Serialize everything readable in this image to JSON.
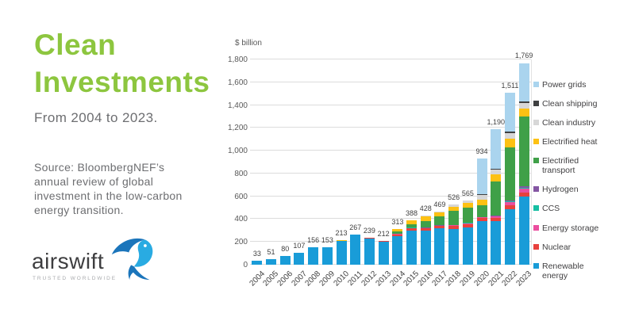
{
  "slide": {
    "title": "Clean Investments",
    "subtitle": "From 2004 to 2023.",
    "source": "Source: BloombergNEF’s annual review of global investment in the low-carbon energy transition.",
    "logo": {
      "name": "airswift",
      "tagline": "TRUSTED WORLDWIDE"
    },
    "colors": {
      "title_green": "#8dc63f",
      "text_gray": "#6d6e71",
      "logo_dark": "#3e3e40",
      "bird_dark_blue": "#1b75bb",
      "bird_light_blue": "#29abe2"
    }
  },
  "chart_data": {
    "type": "bar",
    "stacked": true,
    "title": "",
    "xlabel": "",
    "ylabel": "$ billion",
    "ylim": [
      0,
      1800
    ],
    "y_tick_step": 200,
    "y_ticks": [
      "0",
      "200",
      "400",
      "600",
      "800",
      "1,000",
      "1,200",
      "1,400",
      "1,600",
      "1,800"
    ],
    "grid": "horizontal",
    "legend_position": "right",
    "categories": [
      "2004",
      "2005",
      "2006",
      "2007",
      "2008",
      "2009",
      "2010",
      "2011",
      "2012",
      "2013",
      "2014",
      "2015",
      "2016",
      "2017",
      "2018",
      "2019",
      "2020",
      "2021",
      "2022",
      "2023"
    ],
    "totals": [
      33,
      51,
      80,
      107,
      156,
      153,
      213,
      267,
      239,
      212,
      313,
      388,
      428,
      469,
      526,
      565,
      934,
      1190,
      1511,
      1769
    ],
    "total_labels": [
      "33",
      "51",
      "80",
      "107",
      "156",
      "153",
      "213",
      "267",
      "239",
      "212",
      "313",
      "388",
      "428",
      "469",
      "526",
      "565",
      "934",
      "1,190",
      "1,511",
      "1,769"
    ],
    "series": [
      {
        "name": "Renewable energy",
        "color": "#199cd8",
        "values": [
          33,
          51,
          79,
          106,
          154,
          151,
          209,
          261,
          231,
          203,
          252,
          302,
          296,
          318,
          315,
          330,
          380,
          380,
          490,
          600
        ]
      },
      {
        "name": "Nuclear",
        "color": "#e8413d",
        "values": [
          0,
          0,
          1,
          1,
          2,
          2,
          3,
          4,
          5,
          6,
          15,
          19,
          24,
          22,
          27,
          28,
          27,
          27,
          30,
          33
        ]
      },
      {
        "name": "Energy storage",
        "color": "#eb4e9f",
        "values": [
          0,
          0,
          0,
          0,
          0,
          0,
          0,
          0,
          0,
          0,
          1,
          2,
          2,
          3,
          5,
          6,
          9,
          14,
          32,
          36
        ]
      },
      {
        "name": "CCS",
        "color": "#17bfa3",
        "values": [
          0,
          0,
          0,
          0,
          0,
          0,
          0,
          0,
          0,
          0,
          0,
          1,
          1,
          1,
          2,
          2,
          2,
          3,
          4,
          8
        ]
      },
      {
        "name": "Hydrogen",
        "color": "#8456a3",
        "values": [
          0,
          0,
          0,
          0,
          0,
          0,
          0,
          0,
          0,
          0,
          0,
          0,
          1,
          1,
          1,
          2,
          2,
          4,
          4,
          9
        ]
      },
      {
        "name": "Electrified transport",
        "color": "#3fa048",
        "values": [
          0,
          0,
          0,
          0,
          0,
          0,
          0,
          1,
          1,
          2,
          21,
          34,
          60,
          79,
          121,
          130,
          105,
          300,
          470,
          612
        ]
      },
      {
        "name": "Electrified heat",
        "color": "#fdc113",
        "values": [
          0,
          0,
          0,
          0,
          0,
          0,
          1,
          1,
          2,
          1,
          24,
          30,
          37,
          38,
          40,
          47,
          48,
          65,
          75,
          72
        ]
      },
      {
        "name": "Clean industry",
        "color": "#d7d7d7",
        "values": [
          0,
          0,
          0,
          0,
          0,
          0,
          0,
          0,
          0,
          0,
          0,
          0,
          7,
          7,
          15,
          20,
          42,
          45,
          50,
          48
        ]
      },
      {
        "name": "Clean shipping",
        "color": "#3f4041",
        "values": [
          0,
          0,
          0,
          0,
          0,
          0,
          0,
          0,
          0,
          0,
          0,
          0,
          0,
          0,
          0,
          0,
          2,
          5,
          12,
          15
        ]
      },
      {
        "name": "Power grids",
        "color": "#aad4ee",
        "values": [
          0,
          0,
          0,
          0,
          0,
          0,
          0,
          0,
          0,
          0,
          0,
          0,
          0,
          0,
          0,
          0,
          317,
          347,
          344,
          336
        ]
      }
    ]
  }
}
